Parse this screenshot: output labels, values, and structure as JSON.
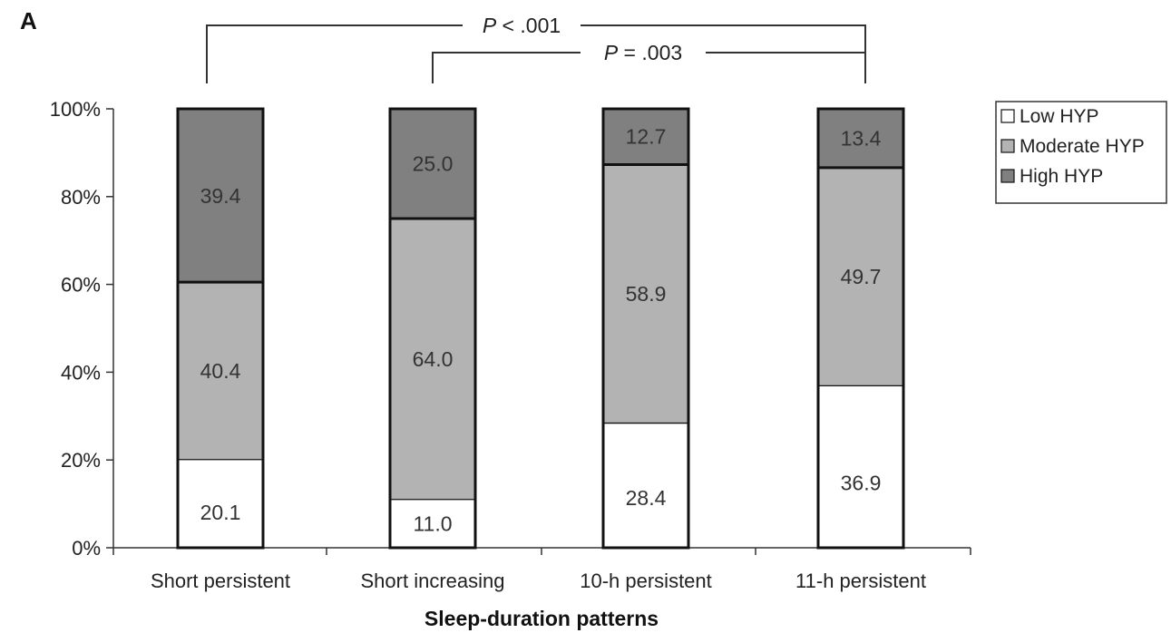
{
  "chart_data": {
    "type": "bar",
    "stacked": true,
    "panel_label": "A",
    "xlabel": "Sleep-duration patterns",
    "ylabel": "",
    "ylim": [
      0,
      100
    ],
    "y_ticks": [
      "0%",
      "20%",
      "40%",
      "60%",
      "80%",
      "100%"
    ],
    "categories": [
      "Short persistent",
      "Short increasing",
      "10-h persistent",
      "11-h persistent"
    ],
    "series": [
      {
        "name": "Low HYP",
        "values": [
          20.1,
          11.0,
          28.4,
          36.9
        ],
        "labels": [
          "20.1",
          "11.0",
          "28.4",
          "36.9"
        ],
        "color": "#ffffff"
      },
      {
        "name": "Moderate HYP",
        "values": [
          40.4,
          64.0,
          58.9,
          49.7
        ],
        "labels": [
          "40.4",
          "64.0",
          "58.9",
          "49.7"
        ],
        "color": "#b3b3b3"
      },
      {
        "name": "High HYP",
        "values": [
          39.4,
          25.0,
          12.7,
          13.4
        ],
        "labels": [
          "39.4",
          "25.0",
          "12.7",
          "13.4"
        ],
        "color": "#808080"
      }
    ],
    "legend_position": "top-right",
    "grid": false,
    "comparisons": [
      {
        "from": 0,
        "to": 3,
        "label_p": "P",
        "label_rest": " < .001"
      },
      {
        "from": 1,
        "to": 3,
        "label_p": "P",
        "label_rest": " = .003"
      }
    ]
  }
}
